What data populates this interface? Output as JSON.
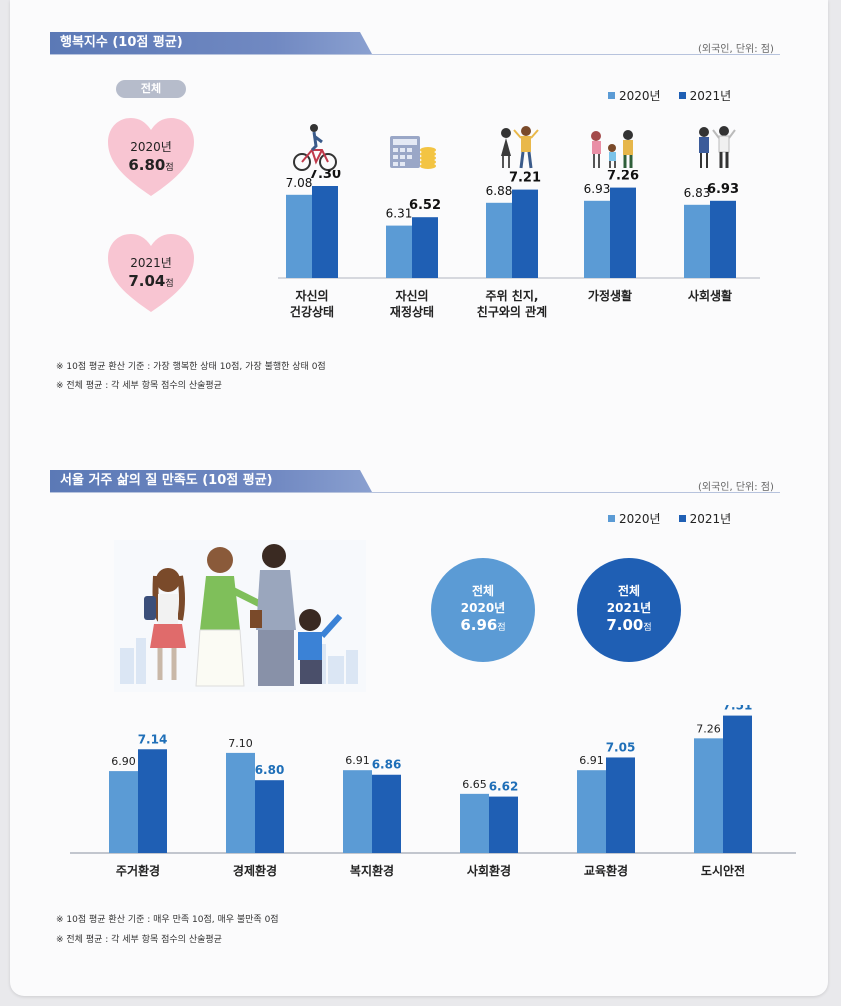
{
  "colors": {
    "y2020": "#5b9bd5",
    "y2021": "#1f5fb4",
    "heart": "#f8c5d2",
    "value_blue": "#1f6fb8"
  },
  "section1": {
    "title": "행복지수 (10점 평균)",
    "unit": "(외국인, 단위: 점)",
    "legend": [
      "2020년",
      "2021년"
    ],
    "overall_label": "전체",
    "hearts": [
      {
        "year": "2020년",
        "score": "6.80",
        "unit": "점"
      },
      {
        "year": "2021년",
        "score": "7.04",
        "unit": "점"
      }
    ],
    "notes": [
      "※ 10점 평균 환산 기준 : 가장 행복한 상태 10점, 가장 불행한 상태 0점",
      "※ 전체 평균 : 각 세부 항목 점수의 산술평균"
    ]
  },
  "section2": {
    "title": "서울 거주 삶의 질 만족도 (10점 평균)",
    "unit": "(외국인, 단위: 점)",
    "legend": [
      "2020년",
      "2021년"
    ],
    "circles": [
      {
        "label": "전체",
        "year": "2020년",
        "score": "6.96",
        "unit": "점"
      },
      {
        "label": "전체",
        "year": "2021년",
        "score": "7.00",
        "unit": "점"
      }
    ],
    "notes": [
      "※ 10점 평균 환산 기준 : 매우 만족 10점, 매우 불만족 0점",
      "※ 전체 평균 : 각 세부 항목 점수의 산술평균"
    ]
  },
  "chart_data": [
    {
      "type": "bar",
      "title": "행복지수 (10점 평균)",
      "categories": [
        [
          "자신의",
          "건강상태"
        ],
        [
          "자신의",
          "재정상태"
        ],
        [
          "주위 친지,",
          "친구와의 관계"
        ],
        [
          "가정생활"
        ],
        [
          "사회생활"
        ]
      ],
      "series": [
        {
          "name": "2020년",
          "values": [
            7.08,
            6.31,
            6.88,
            6.93,
            6.83
          ]
        },
        {
          "name": "2021년",
          "values": [
            7.3,
            6.52,
            7.21,
            7.26,
            6.93
          ]
        }
      ],
      "grid": false,
      "legend": "top-right"
    },
    {
      "type": "bar",
      "title": "서울 거주 삶의 질 만족도 (10점 평균)",
      "categories": [
        "주거환경",
        "경제환경",
        "복지환경",
        "사회환경",
        "교육환경",
        "도시안전"
      ],
      "series": [
        {
          "name": "2020년",
          "values": [
            6.9,
            7.1,
            6.91,
            6.65,
            6.91,
            7.26
          ]
        },
        {
          "name": "2021년",
          "values": [
            7.14,
            6.8,
            6.86,
            6.62,
            7.05,
            7.51
          ]
        }
      ],
      "grid": false,
      "legend": "top-right"
    }
  ]
}
